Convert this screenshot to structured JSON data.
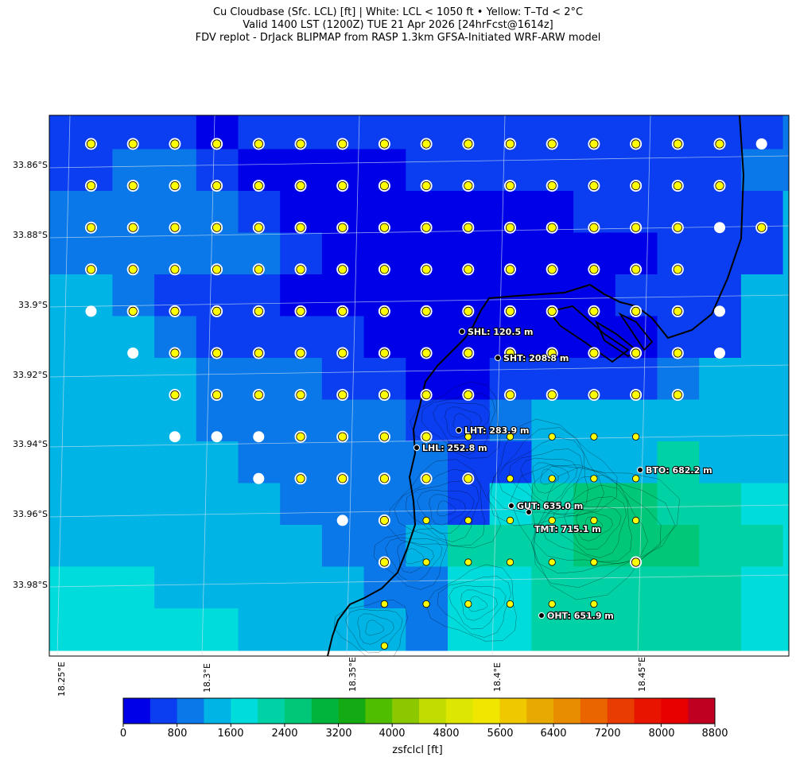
{
  "title": {
    "line1": "Cu Cloudbase (Sfc. LCL) [ft]  |  White: LCL < 1050 ft • Yellow: T–Td < 2°C",
    "line2": "Valid 1400 LST (1200Z) TUE 21 Apr 2026 [24hrFcst@1614z]",
    "line3": "FDV replot - DrJack BLIPMAP from RASP 1.3km GFSA-Initiated WRF-ARW model"
  },
  "axes": {
    "lat_ticks": [
      "33.86°S",
      "33.88°S",
      "33.9°S",
      "33.92°S",
      "33.94°S",
      "33.96°S",
      "33.98°S"
    ],
    "lon_ticks": [
      "18.25°E",
      "18.3°E",
      "18.35°E",
      "18.4°E",
      "18.45°E"
    ]
  },
  "colorbar": {
    "label": "zsfclcl [ft]",
    "ticks": [
      "0",
      "800",
      "1600",
      "2400",
      "3200",
      "4000",
      "4800",
      "5600",
      "6400",
      "7200",
      "8000",
      "8800"
    ],
    "colors": [
      "#0000e8",
      "#0a3ef0",
      "#0a78e8",
      "#00b4e6",
      "#00dcdc",
      "#00d2a6",
      "#00c878",
      "#00b43c",
      "#14aa14",
      "#50be00",
      "#8cc800",
      "#c0dc00",
      "#dce600",
      "#f0e600",
      "#f0c800",
      "#e8aa00",
      "#e88c00",
      "#ea6400",
      "#e83c00",
      "#e81400",
      "#e80000",
      "#c00020"
    ]
  },
  "stations": [
    {
      "label": "SHL: 120.5 m"
    },
    {
      "label": "SHT: 208.8 m"
    },
    {
      "label": "LHT: 283.9 m"
    },
    {
      "label": "LHL: 252.8 m"
    },
    {
      "label": "BTO: 682.2 m"
    },
    {
      "label": "GUT: 635.0 m"
    },
    {
      "label": "TMT: 715.1 m"
    },
    {
      "label": "OHT: 651.9 m"
    }
  ],
  "marker_colors": {
    "white": "#ffffff",
    "yellow": "#ffff00"
  }
}
